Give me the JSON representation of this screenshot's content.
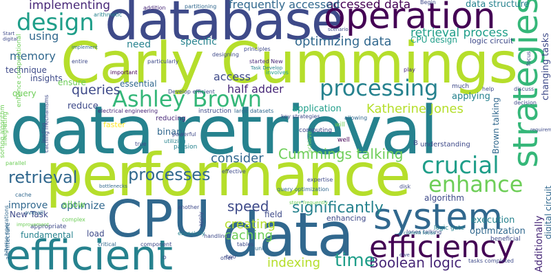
{
  "palette": {
    "dark_purple": "#440154",
    "indigo": "#482878",
    "blue": "#3e4a89",
    "slate_blue": "#31688e",
    "steel_blue": "#26828e",
    "teal": "#1f9e89",
    "green": "#35b779",
    "light_green": "#6ece58",
    "lime": "#b5de2b",
    "yellow": "#fde725"
  },
  "words": [
    "Carly Cummings",
    "data retrieval",
    "database",
    "performance",
    "CPU",
    "data",
    "operation",
    "efficient",
    "system",
    "efficiency",
    "strategies",
    "processing",
    "design",
    "Ashley Brown",
    "crucial",
    "enhance",
    "processes",
    "retrieval",
    "accessed data",
    "frequently accessed",
    "implementing",
    "data structure",
    "Katherine Jones",
    "optimizing data",
    "retrieval process",
    "Cummings talking",
    "Boolean logic",
    "significantly",
    "consider",
    "indexing",
    "creating",
    "caching",
    "time",
    "speed",
    "queries",
    "memory",
    "using",
    "need",
    "specific",
    "half adder",
    "access",
    "algorithm",
    "optimize",
    "improve",
    "allow",
    "application",
    "applying",
    "binary",
    "essential",
    "technique",
    "insights",
    "ensure",
    "reduce",
    "query",
    "execution",
    "optimization",
    "New Task",
    "fundamental",
    "load",
    "field",
    "enhancing",
    "CPU design",
    "logic circuit",
    "Brown talking",
    "Additionally",
    "changing tasks",
    "digital circuit",
    "faster",
    "reducing",
    "instruction",
    "electrical engineering",
    "passion",
    "large datasets",
    "will",
    "well",
    "computing",
    "understanding",
    "sorting algorithm",
    "architecture",
    "caching mechanisms",
    "component",
    "critical",
    "Jones talking",
    "current focus",
    "logic gate",
    "beneficial",
    "appropriate",
    "overall",
    "parallel",
    "bottlenecks",
    "complex",
    "designing",
    "started New",
    "arithmetic",
    "addition",
    "partitioning",
    "Begin",
    "much",
    "involves",
    "play",
    "help",
    "two",
    "another",
    "especially",
    "handling",
    "tables",
    "unit",
    "offer",
    "disk",
    "tasks completed",
    "query optimization",
    "integrating",
    "bitwise operations",
    "enhance computational",
    "leading",
    "important",
    "entire",
    "particularly",
    "implement",
    "principles",
    "scenario",
    "Task Develop",
    "allowing",
    "key strategies",
    "achieve",
    "effective",
    "powerful",
    "true",
    "utilizing",
    "expertise",
    "store frequently",
    "apply",
    "Develop efficient",
    "focus",
    "discuss",
    "decision",
    "improvement",
    "cache",
    "digital",
    "Start",
    "requirements",
    "dive",
    "O",
    "B"
  ]
}
